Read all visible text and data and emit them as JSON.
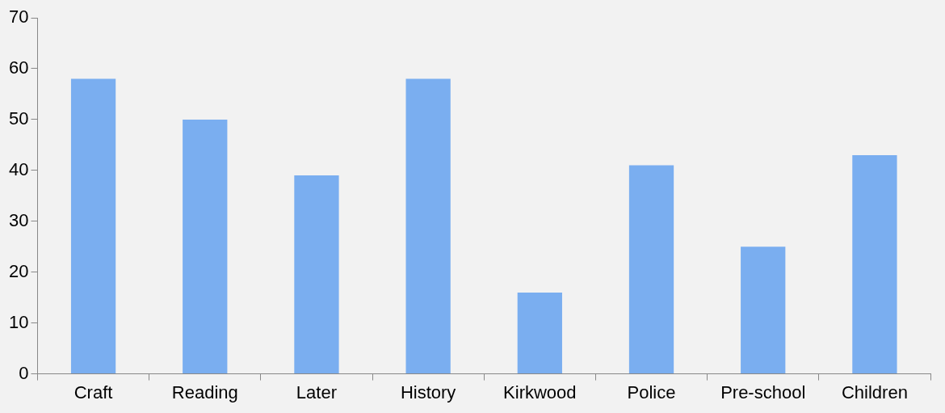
{
  "chart_data": {
    "type": "bar",
    "categories": [
      "Craft",
      "Reading",
      "Later",
      "History",
      "Kirkwood",
      "Police",
      "Pre-school",
      "Children"
    ],
    "values": [
      58,
      50,
      39,
      58,
      16,
      41,
      25,
      43
    ],
    "color": "#7aaef0",
    "ylim": [
      0,
      70
    ],
    "yticks": [
      0,
      10,
      20,
      30,
      40,
      50,
      60,
      70
    ],
    "grid": false,
    "legend": false
  }
}
